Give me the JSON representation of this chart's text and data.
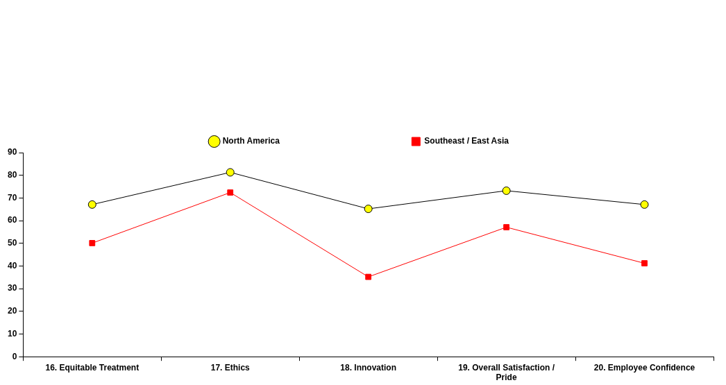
{
  "chart_data": {
    "type": "line",
    "categories": [
      "16. Equitable Treatment",
      "17. Ethics",
      "18. Innovation",
      "19. Overall Satisfaction / Pride",
      "20. Employee Confidence"
    ],
    "series": [
      {
        "name": "North America",
        "color": "#ffff00",
        "marker": "circle",
        "values": [
          67.1,
          81.3,
          65.2,
          73.2,
          67.1
        ]
      },
      {
        "name": "Southeast / East Asia",
        "color": "#ff0000",
        "marker": "square",
        "values": [
          50.1,
          72.4,
          35.2,
          57.1,
          41.2
        ]
      }
    ],
    "ylim": [
      0,
      90
    ],
    "yticks": [
      0,
      10,
      20,
      30,
      40,
      50,
      60,
      70,
      80,
      90
    ],
    "grid": false,
    "legend": "top"
  }
}
